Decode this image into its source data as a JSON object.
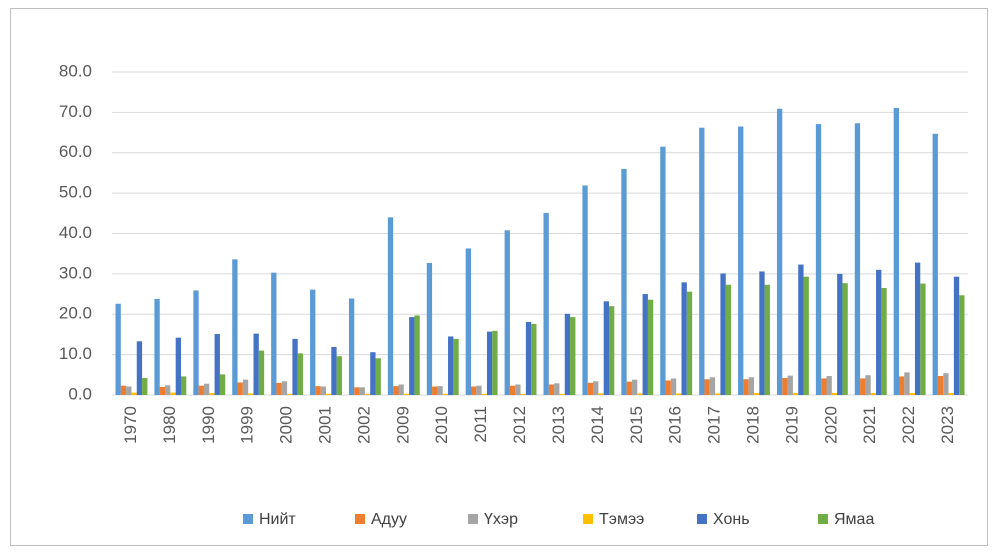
{
  "chart_data": {
    "type": "bar",
    "categories": [
      "1970",
      "1980",
      "1990",
      "1999",
      "2000",
      "2001",
      "2002",
      "2009",
      "2010",
      "2011",
      "2012",
      "2013",
      "2014",
      "2015",
      "2016",
      "2017",
      "2018",
      "2019",
      "2020",
      "2021",
      "2022",
      "2023"
    ],
    "series": [
      {
        "name": "Нийт",
        "color": "#5b9bd5",
        "values": [
          22.6,
          23.8,
          25.9,
          33.6,
          30.3,
          26.1,
          23.9,
          44.0,
          32.7,
          36.3,
          40.8,
          45.1,
          51.9,
          56.0,
          61.5,
          66.2,
          66.5,
          70.9,
          67.1,
          67.3,
          71.1,
          64.7
        ]
      },
      {
        "name": "Адуу",
        "color": "#ed7d31",
        "values": [
          2.3,
          2.0,
          2.3,
          3.1,
          3.0,
          2.2,
          1.9,
          2.2,
          2.1,
          2.1,
          2.3,
          2.6,
          3.0,
          3.3,
          3.6,
          3.9,
          3.9,
          4.2,
          4.1,
          4.1,
          4.6,
          4.7
        ]
      },
      {
        "name": "Үхэр",
        "color": "#a5a5a5",
        "values": [
          2.1,
          2.4,
          2.8,
          3.8,
          3.4,
          2.1,
          1.9,
          2.6,
          2.2,
          2.3,
          2.6,
          2.9,
          3.4,
          3.8,
          4.1,
          4.4,
          4.4,
          4.8,
          4.7,
          4.9,
          5.6,
          5.4
        ]
      },
      {
        "name": "Тэмээ",
        "color": "#ffc000",
        "values": [
          0.6,
          0.6,
          0.5,
          0.4,
          0.3,
          0.3,
          0.3,
          0.3,
          0.3,
          0.3,
          0.3,
          0.3,
          0.4,
          0.4,
          0.4,
          0.4,
          0.5,
          0.5,
          0.5,
          0.5,
          0.5,
          0.5
        ]
      },
      {
        "name": "Хонь",
        "color": "#4472c4",
        "values": [
          13.3,
          14.2,
          15.1,
          15.2,
          13.9,
          11.9,
          10.6,
          19.3,
          14.5,
          15.7,
          18.1,
          20.1,
          23.2,
          25.0,
          27.9,
          30.1,
          30.6,
          32.3,
          30.0,
          31.0,
          32.8,
          29.3
        ]
      },
      {
        "name": "Ямаа",
        "color": "#70ad47",
        "values": [
          4.2,
          4.6,
          5.1,
          11.0,
          10.3,
          9.6,
          9.1,
          19.7,
          13.9,
          15.9,
          17.6,
          19.3,
          22.0,
          23.6,
          25.6,
          27.3,
          27.3,
          29.3,
          27.7,
          26.5,
          27.6,
          24.7
        ]
      }
    ],
    "ylim": [
      0,
      80
    ],
    "yticks": [
      {
        "value": 0,
        "label": "0.0"
      },
      {
        "value": 10,
        "label": "10.0"
      },
      {
        "value": 20,
        "label": "20.0"
      },
      {
        "value": 30,
        "label": "30.0"
      },
      {
        "value": 40,
        "label": "40.0"
      },
      {
        "value": 50,
        "label": "50.0"
      },
      {
        "value": 60,
        "label": "60.0"
      },
      {
        "value": 70,
        "label": "70.0"
      },
      {
        "value": 80,
        "label": "80.0"
      }
    ],
    "grid": true,
    "legend": "bottom"
  }
}
